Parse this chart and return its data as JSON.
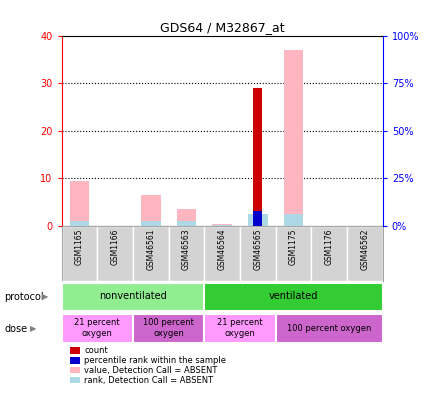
{
  "title": "GDS64 / M32867_at",
  "samples": [
    "GSM1165",
    "GSM1166",
    "GSM46561",
    "GSM46563",
    "GSM46564",
    "GSM46565",
    "GSM1175",
    "GSM1176",
    "GSM46562"
  ],
  "count_values": [
    0,
    0,
    0,
    0,
    0,
    29,
    0,
    0,
    0
  ],
  "percentile_rank_values": [
    0,
    0,
    0,
    0,
    0,
    3,
    0,
    0,
    0
  ],
  "absent_value_values": [
    9.5,
    0,
    6.5,
    3.5,
    0.3,
    0,
    37,
    0,
    0
  ],
  "absent_rank_values": [
    1.0,
    0,
    1.0,
    1.0,
    0.2,
    2.5,
    2.5,
    0,
    0
  ],
  "ylim_left": [
    0,
    40
  ],
  "ylim_right": [
    0,
    100
  ],
  "yticks_left": [
    0,
    10,
    20,
    30,
    40
  ],
  "yticks_right": [
    0,
    25,
    50,
    75,
    100
  ],
  "ytick_labels_left": [
    "0",
    "10",
    "20",
    "30",
    "40"
  ],
  "ytick_labels_right": [
    "0%",
    "25%",
    "50%",
    "75%",
    "100%"
  ],
  "protocol_groups": [
    {
      "label": "nonventilated",
      "start": 0,
      "end": 4,
      "color": "#90EE90"
    },
    {
      "label": "ventilated",
      "start": 4,
      "end": 9,
      "color": "#33CC33"
    }
  ],
  "dose_groups": [
    {
      "label": "21 percent\noxygen",
      "start": 0,
      "end": 2,
      "color": "#FF99FF"
    },
    {
      "label": "100 percent\noxygen",
      "start": 2,
      "end": 4,
      "color": "#CC66CC"
    },
    {
      "label": "21 percent\noxygen",
      "start": 4,
      "end": 6,
      "color": "#FF99FF"
    },
    {
      "label": "100 percent oxygen",
      "start": 6,
      "end": 9,
      "color": "#CC66CC"
    }
  ],
  "color_count": "#CC0000",
  "color_percentile": "#0000CC",
  "color_absent_value": "#FFB6C1",
  "color_absent_rank": "#ADD8E6",
  "legend_items": [
    {
      "color": "#CC0000",
      "label": "count"
    },
    {
      "color": "#0000CC",
      "label": "percentile rank within the sample"
    },
    {
      "color": "#FFB6C1",
      "label": "value, Detection Call = ABSENT"
    },
    {
      "color": "#ADD8E6",
      "label": "rank, Detection Call = ABSENT"
    }
  ]
}
